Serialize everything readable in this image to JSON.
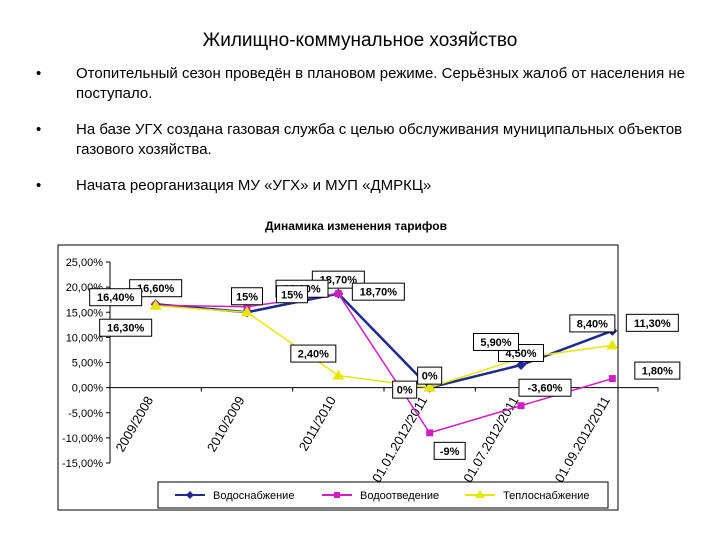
{
  "page": {
    "title": "Жилищно-коммунальное хозяйство",
    "bullet_char": "•",
    "bullets": [
      "Отопительный сезон проведён в плановом режиме. Серьёзных жалоб от населения не поступало.",
      "На базе УГХ создана газовая служба с целью обслуживания муниципальных объектов газового хозяйства.",
      "Начата реорганизация МУ «УГХ» и МУП «ДМРКЦ»"
    ]
  },
  "chart_data": {
    "type": "line",
    "title": "Динамика изменения тарифов",
    "categories": [
      "2009/2008",
      "2010/2009",
      "2011/2010",
      "01.01.2012/2011",
      "01.07.2012/2011",
      "01.09.2012/2011"
    ],
    "ylim": [
      -15,
      25
    ],
    "yticks": [
      "25,00%",
      "20,00%",
      "15,00%",
      "10,00%",
      "5,00%",
      "0,00%",
      "-5,00%",
      "-10,00%",
      "-15,00%"
    ],
    "grid": false,
    "legend_position": "bottom",
    "series": [
      {
        "name": "Водоснабжение",
        "color": "#1f2a8c",
        "marker": "diamond",
        "values": [
          16.6,
          15.0,
          18.7,
          0,
          4.5,
          11.3
        ],
        "labels": [
          "16,60%",
          "15%",
          "18,70%",
          "0%",
          "4,50%",
          "11,30%"
        ]
      },
      {
        "name": "Водоотведение",
        "color": "#d01fbf",
        "marker": "square",
        "values": [
          16.4,
          16.1,
          18.7,
          -9,
          -3.6,
          1.8
        ],
        "labels": [
          "16,40%",
          "16,10%",
          "18,70%",
          "-9%",
          "-3,60%",
          "1,80%"
        ]
      },
      {
        "name": "Теплоснабжение",
        "color": "#e6e600",
        "marker": "triangle",
        "values": [
          16.3,
          15.0,
          2.4,
          0,
          5.9,
          8.4
        ],
        "labels": [
          "16,30%",
          "15%",
          "2,40%",
          "0%",
          "5,90%",
          "8,40%"
        ]
      }
    ]
  }
}
